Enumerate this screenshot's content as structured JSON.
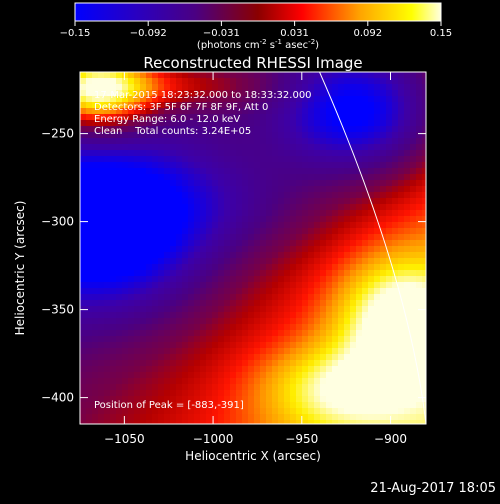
{
  "colorbar": {
    "ticks": [
      "-0.15",
      "-0.092",
      "-0.031",
      "0.031",
      "0.092",
      "0.15"
    ],
    "units_prefix": "(photons cm",
    "units_exp1": "-2",
    "units_mid": " s",
    "units_exp2": "-1",
    "units_mid2": " asec",
    "units_exp3": "-2",
    "units_suffix": ")",
    "range": [
      -0.15,
      0.15
    ]
  },
  "info": {
    "line1": "17-Mar-2015 18:23:32.000 to 18:33:32.000",
    "line2": "Detectors: 3F 5F 6F 7F 8F 9F, Att 0",
    "line3": "Energy Range: 6.0 - 12.0 keV",
    "line4": "Clean    Total counts: 3.24E+05",
    "peak": "Position of Peak = [-883,-391]"
  },
  "footer": {
    "timestamp": "21-Aug-2017 18:05"
  },
  "chart_data": {
    "type": "heatmap",
    "title": "Reconstructed RHESSI Image",
    "xlabel": "Heliocentric X (arcsec)",
    "ylabel": "Heliocentric Y (arcsec)",
    "xlim": [
      -1075,
      -880
    ],
    "ylim": [
      -415,
      -215
    ],
    "x_ticks": [
      -1050,
      -1000,
      -950,
      -900
    ],
    "y_ticks": [
      -250,
      -300,
      -350,
      -400
    ],
    "x_tick_labels": [
      "−1050",
      "−1000",
      "−950",
      "−900"
    ],
    "y_tick_labels": [
      "−250",
      "−300",
      "−350",
      "−400"
    ],
    "value_range": [
      -0.15,
      0.15
    ],
    "grid": false,
    "colormap": [
      "#0000ff",
      "#4b0082",
      "#8b0000",
      "#ff0000",
      "#ffa500",
      "#ffff00",
      "#ffffe0"
    ],
    "features": [
      {
        "kind": "bright",
        "x": -895,
        "y": -355
      },
      {
        "kind": "bright",
        "x": -930,
        "y": -395
      },
      {
        "kind": "bright",
        "x": -1065,
        "y": -225
      },
      {
        "kind": "dark",
        "x": -1060,
        "y": -305
      },
      {
        "kind": "dark",
        "x": -920,
        "y": -235
      }
    ],
    "limb_arc": [
      [
        -940,
        -215
      ],
      [
        -890,
        -330
      ],
      [
        -880,
        -415
      ]
    ],
    "peak": [
      -883,
      -391
    ]
  }
}
